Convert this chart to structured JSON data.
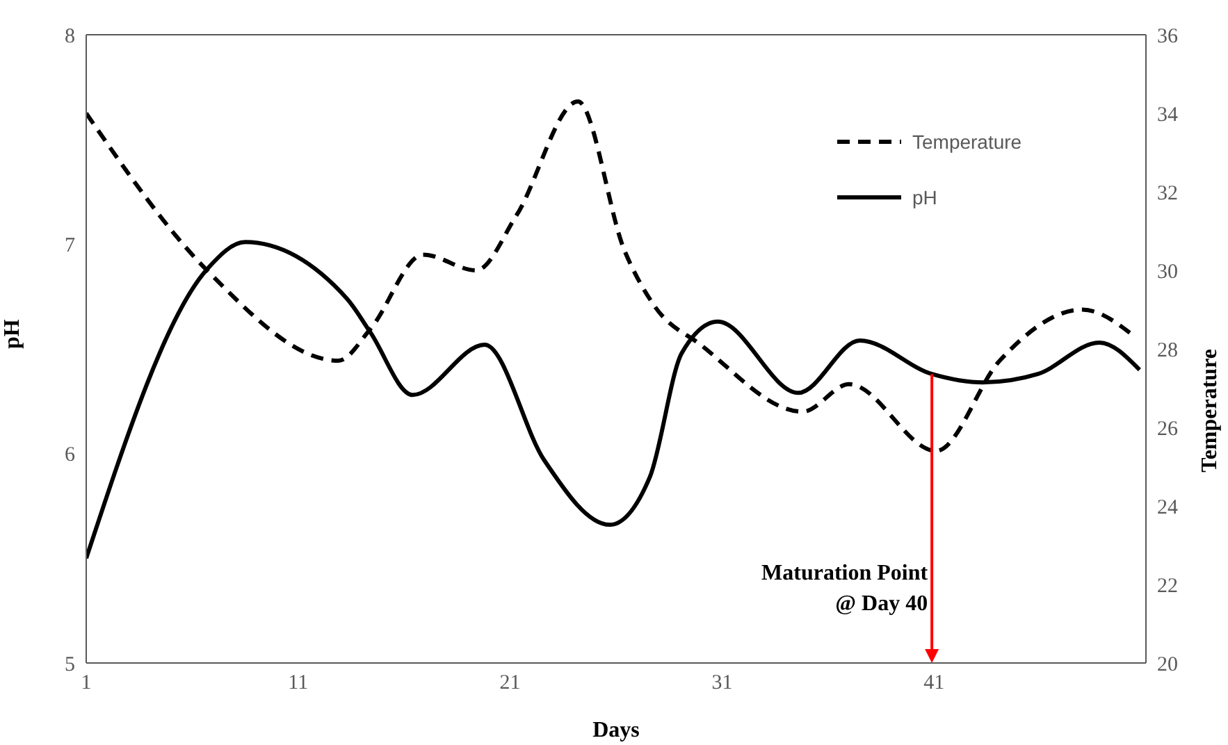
{
  "chart_data": {
    "type": "line",
    "xlabel": "Days",
    "ylabel": "pH",
    "y2label": "Temperature",
    "xlim": [
      1,
      51
    ],
    "xticks": [
      1,
      11,
      21,
      31,
      41
    ],
    "ylim": [
      5,
      8
    ],
    "yticks": [
      5,
      6,
      7,
      8
    ],
    "y2lim": [
      20,
      36
    ],
    "y2ticks": [
      20,
      22,
      24,
      26,
      28,
      30,
      32,
      34,
      36
    ],
    "grid": false,
    "legend": "top right",
    "marker": "none",
    "series": [
      {
        "name": "Temperature",
        "color": "#000000",
        "axis": "y2",
        "line_style": "dashed",
        "x": [
          1,
          6.7,
          12.9,
          14.4,
          16.9,
          19.4,
          21.3,
          24.2,
          26.4,
          27.8,
          30,
          34.8,
          37,
          41.1,
          44.1,
          48,
          50.5
        ],
        "values": [
          34,
          30,
          27.7,
          28.5,
          30.4,
          30,
          31.4,
          34.3,
          30.5,
          29.1,
          28.1,
          26.4,
          27.1,
          25.4,
          27.7,
          29,
          28.3
        ]
      },
      {
        "name": "pH",
        "color": "#000000",
        "axis": "y",
        "line_style": "solid",
        "x": [
          1,
          6.7,
          8.5,
          13.3,
          14.4,
          16.4,
          19.8,
          22.6,
          25.7,
          27.6,
          29.1,
          30.8,
          34.6,
          37.5,
          40.9,
          43.3,
          45.9,
          48.8,
          50.7
        ],
        "values": [
          5.5,
          6.88,
          7.01,
          6.74,
          6.58,
          6.28,
          6.52,
          5.97,
          5.66,
          5.89,
          6.48,
          6.63,
          6.29,
          6.54,
          6.38,
          6.34,
          6.38,
          6.53,
          6.4
        ]
      }
    ],
    "ref_lines": [
      {
        "axis": "x",
        "value": 40.9,
        "label": "Maturation Point\n@ Day 40",
        "color": "#ff0000"
      }
    ]
  }
}
